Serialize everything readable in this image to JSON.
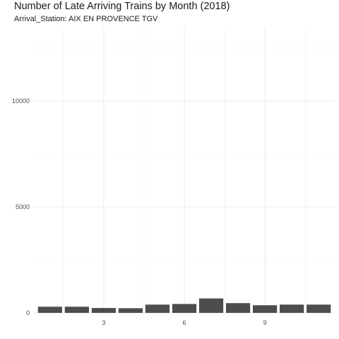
{
  "chart_data": {
    "type": "bar",
    "title": "Number of Late Arriving Trains by Month (2018)",
    "subtitle": "Arrival_Station: AIX EN PROVENCE TGV",
    "xlabel": "",
    "ylabel": "",
    "x": [
      1,
      2,
      3,
      4,
      5,
      6,
      7,
      8,
      9,
      10,
      11
    ],
    "values": [
      290,
      290,
      230,
      220,
      390,
      420,
      680,
      460,
      360,
      390,
      390
    ],
    "xticks": [
      3,
      6,
      9
    ],
    "yticks": [
      0,
      5000,
      10000
    ],
    "ylim": [
      0,
      13500
    ],
    "xlim": [
      0.4,
      11.6
    ],
    "grid": true,
    "legend": "none",
    "colors": {
      "bar": "#4d4d4d",
      "grid_major": "#ebebeb",
      "grid_minor": "#f4f4f4",
      "text": "#4d4d4d"
    }
  }
}
